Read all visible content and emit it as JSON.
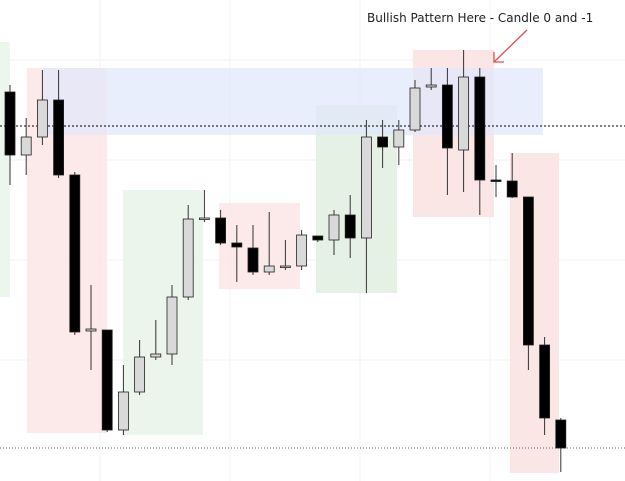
{
  "chart_data": {
    "type": "candlestick",
    "annotation": "Bullish Pattern Here - Candle 0 and -1",
    "ylim": [
      0,
      481
    ],
    "up_color": "#d9d9d9",
    "down_color": "#000000",
    "open": [
      389,
      326,
      344,
      381,
      306,
      150,
      151,
      51,
      89,
      124,
      127,
      184,
      262,
      263,
      238,
      233,
      209,
      214,
      215,
      245,
      241,
      266,
      243,
      344,
      334,
      351,
      394,
      396,
      331,
      404,
      301,
      300,
      284,
      136,
      61
    ],
    "close": [
      326,
      344,
      381,
      306,
      149,
      152,
      51,
      89,
      124,
      127,
      184,
      262,
      263,
      238,
      234,
      209,
      215,
      215,
      246,
      241,
      266,
      243,
      344,
      334,
      351,
      393,
      396,
      333,
      404,
      301,
      300,
      284,
      136,
      63,
      33
    ],
    "high": [
      396,
      363,
      411,
      411,
      309,
      196,
      151,
      116,
      141,
      161,
      196,
      276,
      291,
      271,
      256,
      256,
      269,
      241,
      251,
      245,
      271,
      286,
      361,
      361,
      361,
      401,
      413,
      413,
      431,
      413,
      316,
      328,
      284,
      144,
      63
    ],
    "low": [
      296,
      306,
      336,
      303,
      146,
      111,
      49,
      46,
      86,
      121,
      116,
      181,
      259,
      236,
      199,
      206,
      206,
      211,
      211,
      239,
      226,
      223,
      188,
      313,
      316,
      349,
      391,
      286,
      289,
      266,
      284,
      283,
      111,
      46,
      9
    ]
  }
}
